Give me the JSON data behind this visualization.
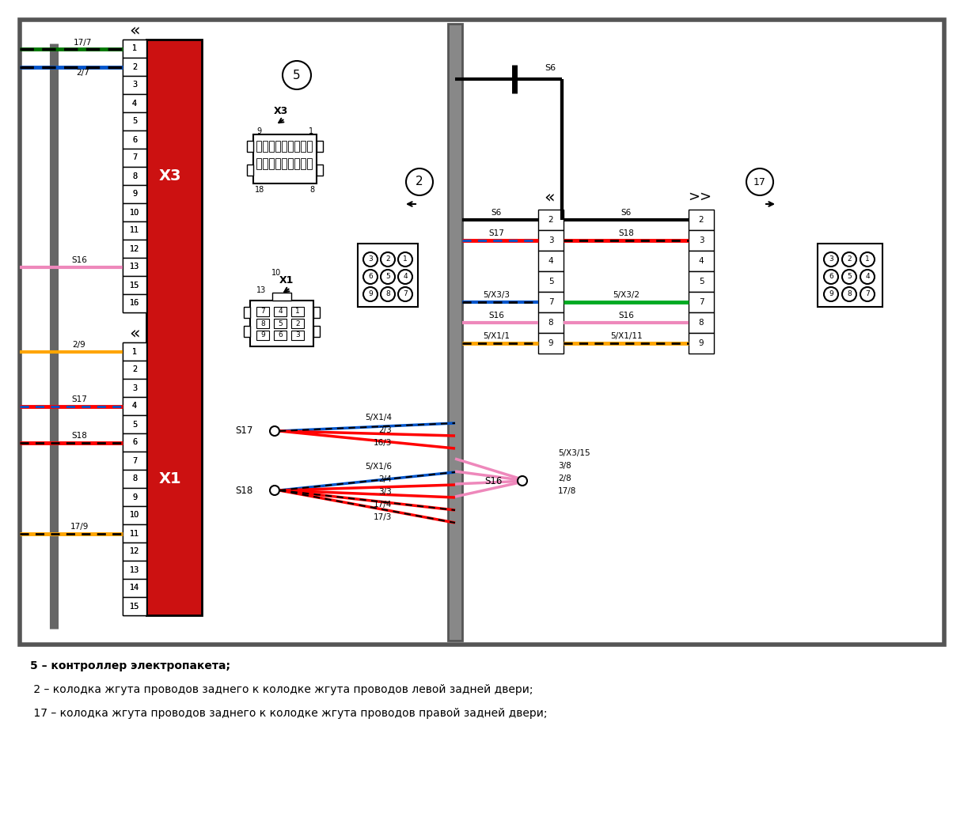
{
  "bg": "#ffffff",
  "legend": [
    "5 – контроллер электропакета;",
    " 2 – колодка жгута проводов заднего к колодке жгута проводов левой задней двери;",
    " 17 – колодка жгута проводов заднего к колодке жгута проводов правой задней двери;"
  ]
}
